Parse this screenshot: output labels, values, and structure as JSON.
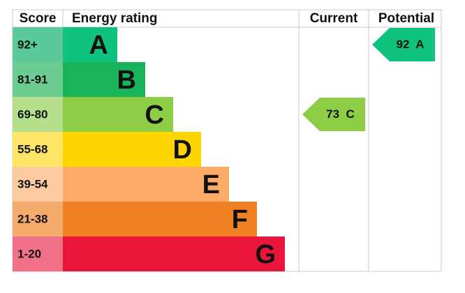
{
  "header": {
    "score": "Score",
    "rating": "Energy rating",
    "current": "Current",
    "potential": "Potential"
  },
  "bands": [
    {
      "range": "92+",
      "letter": "A",
      "color": "#0fc27e",
      "light": "#5cc99a"
    },
    {
      "range": "81-91",
      "letter": "B",
      "color": "#19b459",
      "light": "#6ccc91"
    },
    {
      "range": "69-80",
      "letter": "C",
      "color": "#8dce46",
      "light": "#b5df8a"
    },
    {
      "range": "55-68",
      "letter": "D",
      "color": "#ffd500",
      "light": "#ffe566"
    },
    {
      "range": "39-54",
      "letter": "E",
      "color": "#fcaa65",
      "light": "#fdcb9f"
    },
    {
      "range": "21-38",
      "letter": "F",
      "color": "#ef8023",
      "light": "#f4ab6c"
    },
    {
      "range": "1-20",
      "letter": "G",
      "color": "#e9153b",
      "light": "#f07188"
    }
  ],
  "current": {
    "value": 73,
    "letter": "C"
  },
  "potential": {
    "value": 92,
    "letter": "A"
  }
}
